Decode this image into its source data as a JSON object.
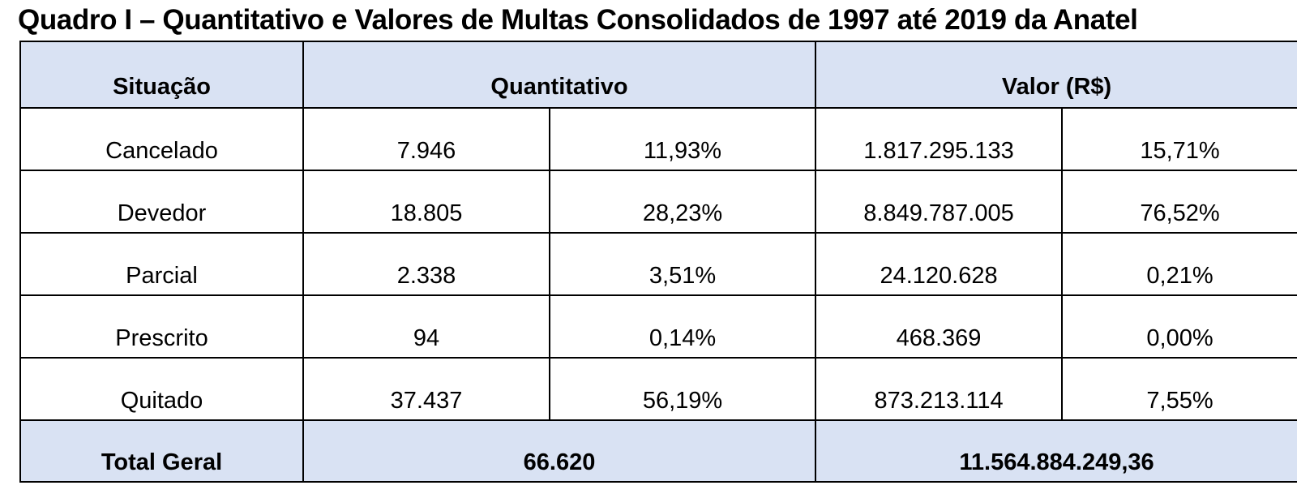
{
  "title": "Quadro I – Quantitativo e Valores de Multas Consolidados de 1997 até 2019 da Anatel",
  "headers": {
    "situacao": "Situação",
    "quantitativo": "Quantitativo",
    "valor": "Valor (R$)"
  },
  "rows": [
    {
      "situacao": "Cancelado",
      "quantidade": "7.946",
      "quantidade_pct": "11,93%",
      "valor": "1.817.295.133",
      "valor_pct": "15,71%"
    },
    {
      "situacao": "Devedor",
      "quantidade": "18.805",
      "quantidade_pct": "28,23%",
      "valor": "8.849.787.005",
      "valor_pct": "76,52%"
    },
    {
      "situacao": "Parcial",
      "quantidade": "2.338",
      "quantidade_pct": "3,51%",
      "valor": "24.120.628",
      "valor_pct": "0,21%"
    },
    {
      "situacao": "Prescrito",
      "quantidade": "94",
      "quantidade_pct": "0,14%",
      "valor": "468.369",
      "valor_pct": "0,00%"
    },
    {
      "situacao": "Quitado",
      "quantidade": "37.437",
      "quantidade_pct": "56,19%",
      "valor": "873.213.114",
      "valor_pct": "7,55%"
    }
  ],
  "total": {
    "label": "Total Geral",
    "quantidade": "66.620",
    "valor": "11.564.884.249,36"
  }
}
